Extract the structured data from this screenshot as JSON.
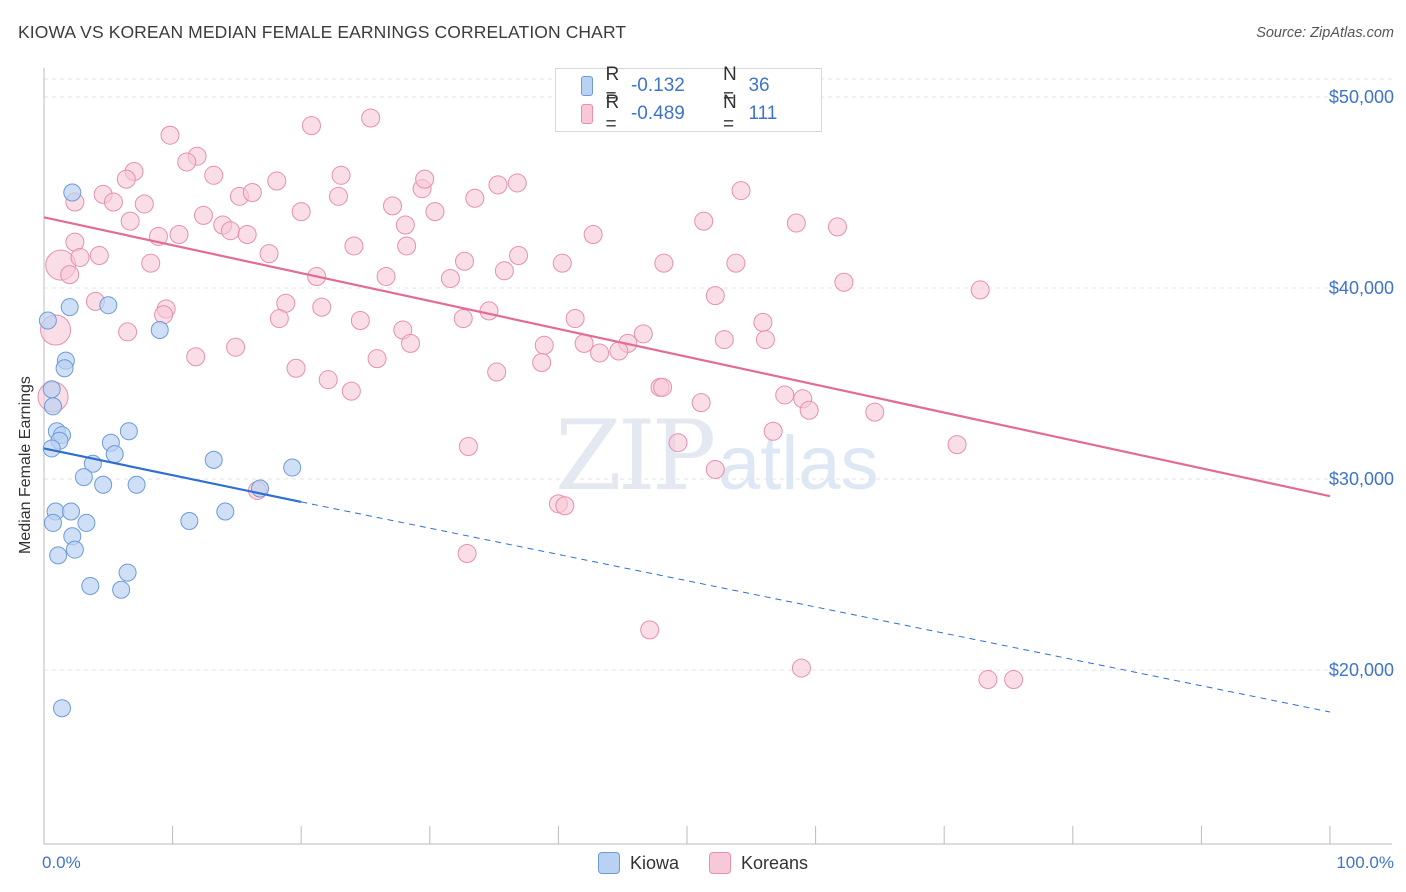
{
  "title": "KIOWA VS KOREAN MEDIAN FEMALE EARNINGS CORRELATION CHART",
  "source": "Source: ZipAtlas.com",
  "watermark": {
    "zip": "ZIP",
    "atlas": "atlas"
  },
  "colors": {
    "kiowa_fill": "#b9d2f2",
    "kiowa_stroke": "#6d9bd9",
    "kiowa_line": "#2f6fd0",
    "koreans_fill": "#f7c8d7",
    "koreans_stroke": "#e88fad",
    "koreans_line": "#e36c97",
    "axis_text": "#3f74c9",
    "grid": "#e3e3e3"
  },
  "legend": {
    "rows": [
      {
        "r_label": "R =",
        "r_value": "-0.132",
        "n_label": "N =",
        "n_value": "36"
      },
      {
        "r_label": "R =",
        "r_value": "-0.489",
        "n_label": "N =",
        "n_value": "111"
      }
    ]
  },
  "bottom_legend": {
    "kiowa": "Kiowa",
    "koreans": "Koreans"
  },
  "axes": {
    "ylabel": "Median Female Earnings",
    "x_min_label": "0.0%",
    "x_max_label": "100.0%",
    "y_ticks": [
      "$50,000",
      "$40,000",
      "$30,000",
      "$20,000"
    ]
  },
  "chart_data": {
    "type": "scatter",
    "xlim": [
      0,
      100
    ],
    "ylim": [
      10000,
      52000
    ],
    "y_gridlines": [
      50000,
      40000,
      30000,
      20000
    ],
    "series": [
      {
        "name": "Kiowa",
        "trend": {
          "x": [
            0,
            20
          ],
          "y": [
            31600,
            28800
          ],
          "extended_to_x": 100,
          "extended_y": 17800
        },
        "points": [
          [
            0.3,
            38300
          ],
          [
            2.2,
            45000
          ],
          [
            2.0,
            39000
          ],
          [
            5.0,
            39100
          ],
          [
            9.0,
            37800
          ],
          [
            1.7,
            36200
          ],
          [
            1.6,
            35800
          ],
          [
            0.6,
            34700
          ],
          [
            0.7,
            33800
          ],
          [
            1.0,
            32500
          ],
          [
            1.4,
            32300
          ],
          [
            1.2,
            32000
          ],
          [
            6.6,
            32500
          ],
          [
            5.2,
            31900
          ],
          [
            5.5,
            31300
          ],
          [
            0.6,
            31600
          ],
          [
            3.8,
            30800
          ],
          [
            13.2,
            31000
          ],
          [
            19.3,
            30600
          ],
          [
            3.1,
            30100
          ],
          [
            4.6,
            29700
          ],
          [
            7.2,
            29700
          ],
          [
            0.9,
            28300
          ],
          [
            2.1,
            28300
          ],
          [
            14.1,
            28300
          ],
          [
            0.7,
            27700
          ],
          [
            3.3,
            27700
          ],
          [
            11.3,
            27800
          ],
          [
            2.2,
            27000
          ],
          [
            2.4,
            26300
          ],
          [
            1.1,
            26000
          ],
          [
            6.5,
            25100
          ],
          [
            3.6,
            24400
          ],
          [
            6.0,
            24200
          ],
          [
            1.4,
            18000
          ],
          [
            16.8,
            29500
          ]
        ]
      },
      {
        "name": "Koreans",
        "trend": {
          "x": [
            0,
            100
          ],
          "y": [
            43700,
            29100
          ]
        },
        "points": [
          [
            20.8,
            48500
          ],
          [
            25.4,
            48900
          ],
          [
            9.8,
            48000
          ],
          [
            11.9,
            46900
          ],
          [
            11.1,
            46600
          ],
          [
            7.0,
            46100
          ],
          [
            6.4,
            45700
          ],
          [
            13.2,
            45900
          ],
          [
            18.1,
            45600
          ],
          [
            23.1,
            45900
          ],
          [
            29.4,
            45200
          ],
          [
            29.6,
            45700
          ],
          [
            35.3,
            45400
          ],
          [
            36.8,
            45500
          ],
          [
            54.2,
            45100
          ],
          [
            2.4,
            44500
          ],
          [
            4.6,
            44900
          ],
          [
            5.4,
            44500
          ],
          [
            7.8,
            44400
          ],
          [
            15.2,
            44800
          ],
          [
            16.2,
            45000
          ],
          [
            20.0,
            44000
          ],
          [
            22.9,
            44800
          ],
          [
            27.1,
            44300
          ],
          [
            30.4,
            44000
          ],
          [
            33.5,
            44700
          ],
          [
            12.4,
            43800
          ],
          [
            13.9,
            43300
          ],
          [
            6.7,
            43500
          ],
          [
            28.1,
            43300
          ],
          [
            42.7,
            42800
          ],
          [
            51.3,
            43500
          ],
          [
            58.5,
            43400
          ],
          [
            61.7,
            43200
          ],
          [
            8.9,
            42700
          ],
          [
            10.5,
            42800
          ],
          [
            14.5,
            43000
          ],
          [
            15.8,
            42800
          ],
          [
            2.4,
            42400
          ],
          [
            24.1,
            42200
          ],
          [
            28.2,
            42200
          ],
          [
            4.3,
            41700
          ],
          [
            17.5,
            41800
          ],
          [
            1.3,
            41200
          ],
          [
            2.8,
            41600
          ],
          [
            8.3,
            41300
          ],
          [
            32.7,
            41400
          ],
          [
            36.9,
            41700
          ],
          [
            40.3,
            41300
          ],
          [
            48.2,
            41300
          ],
          [
            53.8,
            41300
          ],
          [
            35.8,
            40900
          ],
          [
            26.6,
            40600
          ],
          [
            21.2,
            40600
          ],
          [
            31.6,
            40500
          ],
          [
            62.2,
            40300
          ],
          [
            2.0,
            40700
          ],
          [
            72.8,
            39900
          ],
          [
            4.0,
            39300
          ],
          [
            9.5,
            38900
          ],
          [
            18.8,
            39200
          ],
          [
            21.6,
            39000
          ],
          [
            34.6,
            38800
          ],
          [
            52.2,
            39600
          ],
          [
            9.3,
            38600
          ],
          [
            18.3,
            38400
          ],
          [
            24.6,
            38300
          ],
          [
            32.6,
            38400
          ],
          [
            41.3,
            38400
          ],
          [
            55.9,
            38200
          ],
          [
            46.6,
            37600
          ],
          [
            6.5,
            37700
          ],
          [
            27.9,
            37800
          ],
          [
            42.0,
            37100
          ],
          [
            45.4,
            37100
          ],
          [
            52.9,
            37300
          ],
          [
            56.1,
            37300
          ],
          [
            0.9,
            37800
          ],
          [
            14.9,
            36900
          ],
          [
            28.5,
            37100
          ],
          [
            38.9,
            37000
          ],
          [
            11.8,
            36400
          ],
          [
            25.9,
            36300
          ],
          [
            38.7,
            36100
          ],
          [
            43.2,
            36600
          ],
          [
            44.7,
            36700
          ],
          [
            19.6,
            35800
          ],
          [
            22.1,
            35200
          ],
          [
            35.2,
            35600
          ],
          [
            47.9,
            34800
          ],
          [
            59.0,
            34200
          ],
          [
            23.9,
            34600
          ],
          [
            0.7,
            34300
          ],
          [
            57.6,
            34400
          ],
          [
            51.1,
            34000
          ],
          [
            48.1,
            34800
          ],
          [
            59.5,
            33600
          ],
          [
            64.6,
            33500
          ],
          [
            56.7,
            32500
          ],
          [
            71.0,
            31800
          ],
          [
            33.0,
            31700
          ],
          [
            49.3,
            31900
          ],
          [
            52.2,
            30500
          ],
          [
            40.0,
            28700
          ],
          [
            40.5,
            28600
          ],
          [
            16.6,
            29400
          ],
          [
            32.9,
            26100
          ],
          [
            47.1,
            22100
          ],
          [
            58.9,
            20100
          ],
          [
            73.4,
            19500
          ],
          [
            75.4,
            19500
          ]
        ]
      }
    ]
  }
}
